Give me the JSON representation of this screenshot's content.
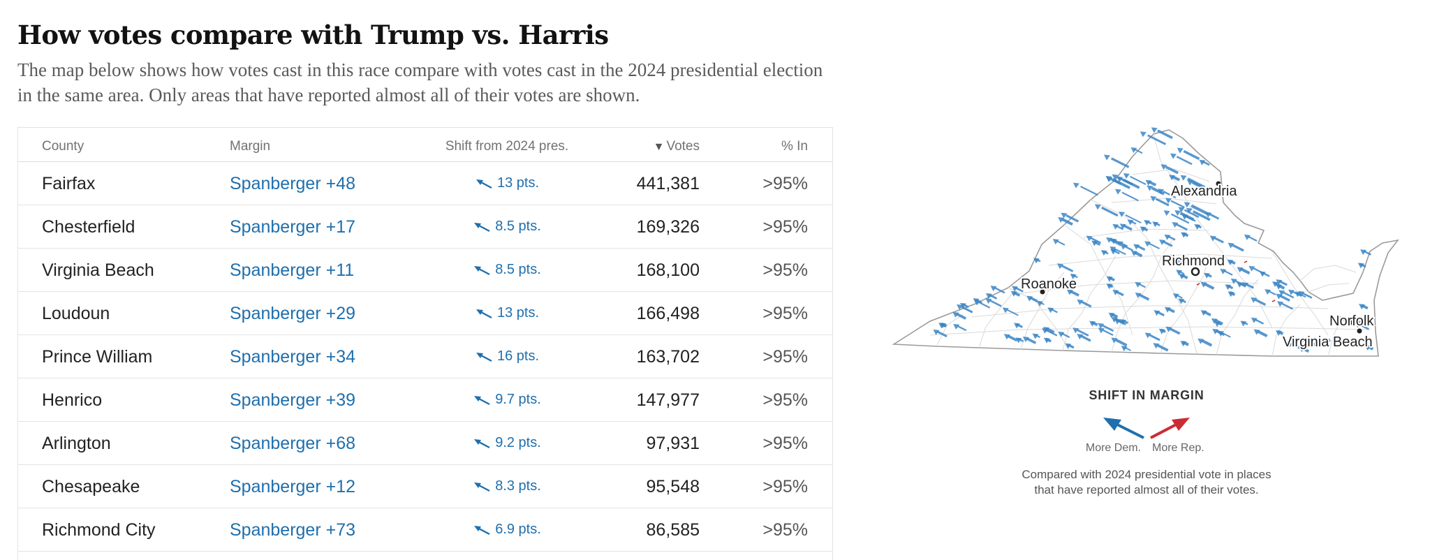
{
  "page": {
    "title": "How votes compare with Trump vs. Harris",
    "intro": "The map below shows how votes cast in this race compare with votes cast in the 2024 presidential election in the same area. Only areas that have reported almost all of their votes are shown."
  },
  "table": {
    "headers": {
      "county": "County",
      "margin": "Margin",
      "shift": "Shift from 2024 pres.",
      "sort_icon": "▼",
      "votes": "Votes",
      "pct_in": "% In"
    },
    "rows": [
      {
        "county": "Fairfax",
        "margin": "Spanberger +48",
        "shift": "13 pts.",
        "votes": "441,381",
        "pct_in": ">95%"
      },
      {
        "county": "Chesterfield",
        "margin": "Spanberger +17",
        "shift": "8.5 pts.",
        "votes": "169,326",
        "pct_in": ">95%"
      },
      {
        "county": "Virginia Beach",
        "margin": "Spanberger +11",
        "shift": "8.5 pts.",
        "votes": "168,100",
        "pct_in": ">95%"
      },
      {
        "county": "Loudoun",
        "margin": "Spanberger +29",
        "shift": "13 pts.",
        "votes": "166,498",
        "pct_in": ">95%"
      },
      {
        "county": "Prince William",
        "margin": "Spanberger +34",
        "shift": "16 pts.",
        "votes": "163,702",
        "pct_in": ">95%"
      },
      {
        "county": "Henrico",
        "margin": "Spanberger +39",
        "shift": "9.7 pts.",
        "votes": "147,977",
        "pct_in": ">95%"
      },
      {
        "county": "Arlington",
        "margin": "Spanberger +68",
        "shift": "9.2 pts.",
        "votes": "97,931",
        "pct_in": ">95%"
      },
      {
        "county": "Chesapeake",
        "margin": "Spanberger +12",
        "shift": "8.3 pts.",
        "votes": "95,548",
        "pct_in": ">95%"
      },
      {
        "county": "Richmond City",
        "margin": "Spanberger +73",
        "shift": "6.9 pts.",
        "votes": "86,585",
        "pct_in": ">95%"
      }
    ]
  },
  "map": {
    "cities": [
      "Alexandria",
      "Richmond",
      "Roanoke",
      "Norfolk",
      "Virginia Beach"
    ]
  },
  "legend": {
    "title": "SHIFT IN MARGIN",
    "dem_label": "More Dem.",
    "rep_label": "More Rep.",
    "note_line1": "Compared with 2024 presidential vote in places",
    "note_line2": "that have reported almost all of their votes."
  },
  "colors": {
    "dem": "#3b86c6",
    "dem_dark": "#1f6fad",
    "rep": "#cc2b33"
  },
  "icons": {
    "shift_arrow": "shift-arrow-icon",
    "sort": "sort-down-icon"
  }
}
